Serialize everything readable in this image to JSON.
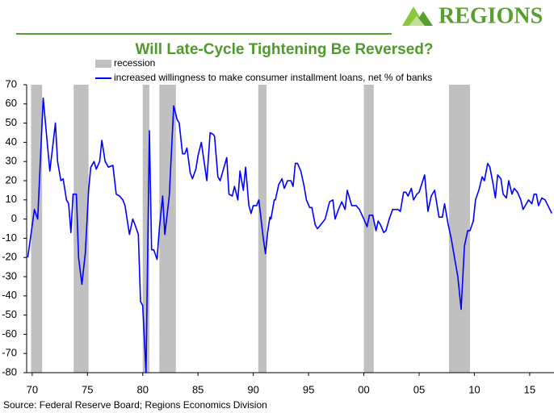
{
  "logo": "REGIONS",
  "chart_data": {
    "type": "line",
    "title": "Will Late-Cycle Tightening Be Reversed?",
    "source": "Source: Federal Reserve Board; Regions Economics Division",
    "recession": {
      "name": "recession",
      "color": "#c0c0c0",
      "periods": [
        [
          1969.9,
          1970.9
        ],
        [
          1973.75,
          1975.1
        ],
        [
          1980.0,
          1980.6
        ],
        [
          1981.5,
          1983.0
        ],
        [
          1990.45,
          1991.2
        ],
        [
          2000.0,
          2000.9
        ],
        [
          2007.7,
          2009.6
        ]
      ]
    },
    "x": [
      1969.6,
      1970.2,
      1970.5,
      1971.0,
      1971.2,
      1971.6,
      1971.8,
      1972.1,
      1972.3,
      1972.6,
      1972.8,
      1973.1,
      1973.3,
      1973.5,
      1973.7,
      1974.0,
      1974.2,
      1974.5,
      1974.8,
      1975.1,
      1975.3,
      1975.6,
      1975.8,
      1976.1,
      1976.3,
      1976.6,
      1976.9,
      1977.3,
      1977.6,
      1977.9,
      1978.2,
      1978.4,
      1978.8,
      1979.1,
      1979.3,
      1979.6,
      1979.8,
      1980.0,
      1980.3,
      1980.6,
      1980.8,
      1981.0,
      1981.3,
      1981.5,
      1981.8,
      1982.0,
      1982.4,
      1982.8,
      1983.1,
      1983.3,
      1983.6,
      1983.8,
      1984.0,
      1984.3,
      1984.5,
      1984.8,
      1985.0,
      1985.3,
      1985.8,
      1986.1,
      1986.4,
      1986.5,
      1986.8,
      1987.0,
      1987.3,
      1987.6,
      1987.8,
      1988.1,
      1988.3,
      1988.6,
      1988.8,
      1989.1,
      1989.3,
      1989.6,
      1989.8,
      1990.0,
      1990.3,
      1990.5,
      1990.9,
      1991.1,
      1991.3,
      1991.5,
      1991.6,
      1991.9,
      1992.0,
      1992.3,
      1992.6,
      1992.8,
      1993.1,
      1993.4,
      1993.6,
      1993.8,
      1994.0,
      1994.3,
      1994.6,
      1994.8,
      1995.1,
      1995.3,
      1995.6,
      1995.8,
      1996.1,
      1996.5,
      1996.9,
      1997.2,
      1997.4,
      1997.7,
      1998.0,
      1998.3,
      1998.5,
      1998.9,
      1999.3,
      1999.6,
      2000.0,
      2000.3,
      2000.5,
      2000.8,
      2001.1,
      2001.3,
      2001.5,
      2001.8,
      2002.0,
      2002.3,
      2002.6,
      2003.1,
      2003.3,
      2003.6,
      2003.8,
      2004.0,
      2004.3,
      2004.5,
      2004.8,
      2005.0,
      2005.5,
      2005.8,
      2006.1,
      2006.4,
      2006.6,
      2006.8,
      2007.1,
      2007.3,
      2007.6,
      2007.9,
      2008.2,
      2008.5,
      2008.8,
      2009.1,
      2009.4,
      2009.6,
      2009.9,
      2010.1,
      2010.4,
      2010.7,
      2010.9,
      2011.2,
      2011.4,
      2011.7,
      2011.9,
      2012.1,
      2012.4,
      2012.6,
      2012.9,
      2013.1,
      2013.4,
      2013.6,
      2013.9,
      2014.2,
      2014.4,
      2014.7,
      2014.9,
      2015.2,
      2015.4,
      2015.6,
      2015.8,
      2016.1,
      2016.4,
      2017.0
    ],
    "series": [
      {
        "name": "increased willingness to make consumer installment loans, net % of banks",
        "color": "#0000ff",
        "values": [
          -20,
          5,
          0,
          63,
          50,
          25,
          35,
          50,
          30,
          20,
          21,
          10,
          8,
          -7,
          13,
          13,
          -20,
          -34,
          -18,
          15,
          27,
          30,
          26,
          30,
          41,
          30,
          27,
          28,
          13,
          12,
          10,
          7,
          -8,
          0,
          -3,
          -8,
          -43,
          -45,
          -80,
          46,
          -16,
          -16,
          -21,
          -5,
          12,
          -8,
          12,
          59,
          52,
          50,
          34,
          34,
          37,
          24,
          21,
          26,
          33,
          40,
          20,
          45,
          44,
          43,
          22,
          20,
          26,
          32,
          13,
          12,
          17,
          10,
          25,
          15,
          27,
          7,
          3,
          7,
          7,
          10,
          -10,
          -18,
          -7,
          1,
          0,
          10,
          10,
          18,
          21,
          16,
          20,
          20,
          17,
          29,
          29,
          25,
          17,
          10,
          6,
          6,
          -3,
          -5,
          -3,
          0,
          9,
          10,
          0,
          5,
          9,
          5,
          15,
          7,
          7,
          5,
          0,
          -4,
          2,
          2,
          -6,
          -1,
          -3,
          -7,
          -6,
          0,
          5,
          5,
          4,
          14,
          14,
          12,
          16,
          10,
          13,
          14,
          23,
          4,
          12,
          15,
          8,
          1,
          1,
          8,
          -2,
          -10,
          -20,
          -30,
          -47,
          -14,
          -6,
          -6,
          -1,
          10,
          15,
          22,
          20,
          29,
          27,
          18,
          11,
          23,
          21,
          13,
          11,
          20,
          13,
          16,
          14,
          10,
          5,
          8,
          10,
          8,
          13,
          13,
          7,
          11,
          10,
          3
        ]
      }
    ],
    "xlim": [
      1969.5,
      2017.2
    ],
    "ylim": [
      -80,
      70
    ],
    "xticks": [
      {
        "value": 1970,
        "label": "70"
      },
      {
        "value": 1975,
        "label": "75"
      },
      {
        "value": 1980,
        "label": "80"
      },
      {
        "value": 1985,
        "label": "85"
      },
      {
        "value": 1990,
        "label": "90"
      },
      {
        "value": 1995,
        "label": "95"
      },
      {
        "value": 2000,
        "label": "00"
      },
      {
        "value": 2005,
        "label": "05"
      },
      {
        "value": 2010,
        "label": "10"
      },
      {
        "value": 2015,
        "label": "15"
      }
    ],
    "yticks": [
      -80,
      -70,
      -60,
      -50,
      -40,
      -30,
      -20,
      -10,
      0,
      10,
      20,
      30,
      40,
      50,
      60,
      70
    ]
  }
}
